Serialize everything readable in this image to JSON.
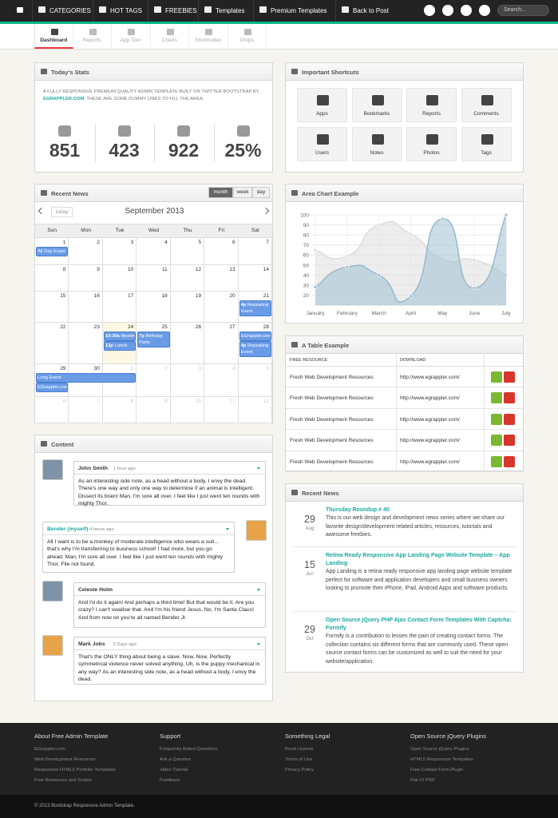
{
  "nav": {
    "items": [
      "CATEGORIES",
      "HOT TAGS",
      "FREEBIES",
      "Templates",
      "Premium Templates",
      "Back to Post"
    ],
    "search_placeholder": "Search..."
  },
  "tabs": [
    "Dashboard",
    "Reports",
    "App Tour",
    "Charts",
    "Shortcodes",
    "Drops"
  ],
  "stats": {
    "title": "Today's Stats",
    "intro": "A FULLY RESPONSIVE PREMIUM QUALITY ADMIN TEMPLATE BUILT ON TWITTER BOOTSTRAP BY",
    "link": "EGRAPPLER.COM",
    "intro_end": ". THESE ARE SOME DUMMY LINES TO FILL THE AREA.",
    "items": [
      "851",
      "423",
      "922",
      "25%"
    ]
  },
  "calendar": {
    "title": "Recent News",
    "views": [
      "month",
      "week",
      "day"
    ],
    "today": "today",
    "month": "September 2013",
    "weekdays": [
      "Sun",
      "Mon",
      "Tue",
      "Wed",
      "Thu",
      "Fri",
      "Sat"
    ],
    "weeks": [
      [
        1,
        2,
        3,
        4,
        5,
        6,
        7
      ],
      [
        8,
        9,
        10,
        11,
        12,
        13,
        14
      ],
      [
        15,
        16,
        17,
        18,
        19,
        20,
        21
      ],
      [
        22,
        23,
        24,
        25,
        26,
        27,
        28
      ],
      [
        29,
        30,
        1,
        2,
        3,
        4,
        5
      ],
      [
        6,
        7,
        8,
        9,
        10,
        11,
        12
      ]
    ],
    "events": [
      {
        "title": "All Day Event"
      },
      {
        "time": "4p",
        "title": "Repeating Event"
      },
      {
        "time": "10:30a",
        "title": "Meeting"
      },
      {
        "time": "12p",
        "title": "Lunch"
      },
      {
        "time": "7p",
        "title": "Birthday Party"
      },
      {
        "title": "EGrappler.com"
      },
      {
        "time": "4p",
        "title": "Repeating Event"
      },
      {
        "title": "Long Event"
      },
      {
        "title": "EGrappler.com"
      }
    ]
  },
  "content": {
    "title": "Content",
    "comments": [
      {
        "name": "John Smith",
        "time": "1 hour ago",
        "text": "As an interesting side note, as a head without a body, I envy the dead. There's one way and only one way to determine if an animal is intelligent. Dissect its brain! Man, I'm sore all over. I feel like I just went ten rounds with mighty Thor."
      },
      {
        "name": "Bender (myself)",
        "time": "4 hours ago",
        "text": "All I want is to be a monkey of moderate intelligence who wears a suit... that's why I'm transferring to business school! I had more, but you go ahead. Man, I'm sore all over. I feel like I just went ten rounds with mighty Thor. File not found."
      },
      {
        "name": "Celeste Holm",
        "text": "And I'd do it again! And perhaps a third time! But that would be it. Are you crazy? I can't swallow that. And I'm his friend Jesus. No, I'm Santa Claus! And from now on you're all named Bender Jr."
      },
      {
        "name": "Mark Jobs",
        "time": "2 Days ago",
        "text": "That's the ONLY thing about being a slave. Now, Now. Perfectly symmetrical violence never solved anything. Uh, is the puppy mechanical in any way? As an interesting side note, as a head without a body, I envy the dead."
      }
    ]
  },
  "shortcuts": {
    "title": "Important Shortcuts",
    "items": [
      "Apps",
      "Bookmarks",
      "Reports",
      "Comments",
      "Users",
      "Notes",
      "Photos",
      "Tags"
    ]
  },
  "area_chart": {
    "type": "area",
    "title": "Area Chart Example",
    "categories": [
      "January",
      "February",
      "March",
      "April",
      "May",
      "June",
      "July"
    ],
    "series": [
      {
        "color": "#dcdcdc",
        "values": [
          65,
          59,
          90,
          81,
          56,
          55,
          40
        ]
      },
      {
        "color": "#97bbcd",
        "values": [
          28,
          48,
          40,
          19,
          96,
          27,
          100
        ]
      }
    ],
    "ylim": [
      10,
      100
    ],
    "yticks": [
      20,
      30,
      40,
      50,
      60,
      70,
      80,
      90,
      100
    ],
    "grid": true
  },
  "table": {
    "title": "A Table Example",
    "headers": [
      "FREE RESOURCE",
      "DOWNLOAD"
    ],
    "rows": [
      [
        "Fresh Web Development Resources",
        "http://www.egrappler.com/"
      ],
      [
        "Fresh Web Development Resources",
        "http://www.egrappler.com/"
      ],
      [
        "Fresh Web Development Resources",
        "http://www.egrappler.com/"
      ],
      [
        "Fresh Web Development Resources",
        "http://www.egrappler.com/"
      ],
      [
        "Fresh Web Development Resources",
        "http://www.egrappler.com/"
      ]
    ]
  },
  "news": {
    "title": "Recent News",
    "items": [
      {
        "day": "29",
        "month": "Aug",
        "title": "Thursday Roundup # 40",
        "text": "This is our web design and development news series where we share our favorite design/development related articles, resources, tutorials and awesome freebies."
      },
      {
        "day": "15",
        "month": "Jun",
        "title": "Retina Ready Responsive App Landing Page Website Template – App Landing",
        "text": "App Landing is a retina ready responsive app landing page website template perfect for software and application developers and small business owners looking to promote their iPhone, iPad, Android Apps and software products."
      },
      {
        "day": "29",
        "month": "Oct",
        "title": "Open Source jQuery PHP Ajax Contact Form Templates With Captcha: Formify",
        "text": "Formify is a contribution to lessen the pain of creating contact forms. The collection contains six different forms that are commonly used. These open source contact forms can be customized as well to suit the need for your website/application."
      }
    ]
  },
  "footer": {
    "columns": [
      {
        "title": "About Free Admin Template",
        "links": [
          "EGrappler.com",
          "Web Development Resources",
          "Responsive HTML5 Portfolio Templates",
          "Free Resources and Scripts"
        ]
      },
      {
        "title": "Support",
        "links": [
          "Frequently Asked Questions",
          "Ask a Question",
          "Video Tutorial",
          "Feedback"
        ]
      },
      {
        "title": "Something Legal",
        "links": [
          "Read License",
          "Terms of Use",
          "Privacy Policy"
        ]
      },
      {
        "title": "Open Source jQuery Plugins",
        "links": [
          "Open Source jQuery Plugins",
          "HTML5 Responsive Tempaltes",
          "Free Contact Form Plugin",
          "Flat UI PSD"
        ]
      }
    ],
    "copyright": "© 2013 Bootstrap Responsive Admin Template."
  }
}
